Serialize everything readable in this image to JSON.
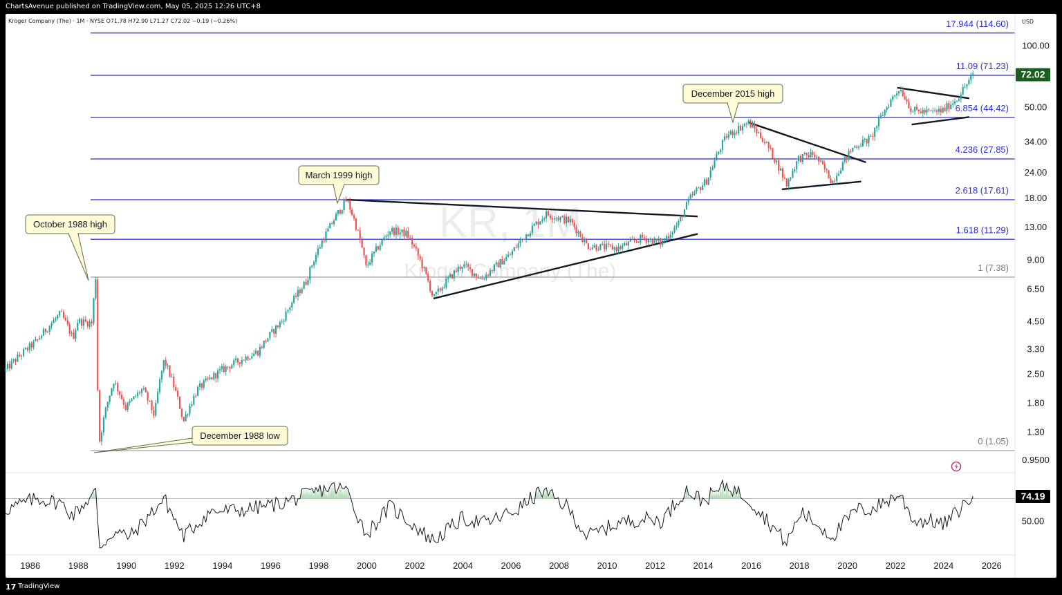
{
  "publisher": "ChartsAvenue published on TradingView.com, May 05, 2025 12:26 UTC+8",
  "header": {
    "symbol_line": "Kroger Company (The) · 1M · NYSE O71.78 H72.90 L71.27 C72.02 −0.19 (−0.26%)"
  },
  "currency": "USD",
  "watermark": {
    "ticker": "KR, 1M",
    "name": "Kroger Company (The)"
  },
  "footer": {
    "logo": "17",
    "brand": "TradingView"
  },
  "colors": {
    "up": "#26a69a",
    "down": "#ef5350",
    "fib_line": "#2a2ed8",
    "fib_base": "#9e9e9e",
    "price_badge": "#1b5e20",
    "rsi_fill": "#a5d6a7"
  },
  "chart_data": [
    {
      "type": "candlestick",
      "title": "Kroger Company (The) · 1M · NYSE",
      "interval": "1M",
      "scale": "log",
      "ohlc_last": {
        "open": 71.78,
        "high": 72.9,
        "low": 71.27,
        "close": 72.02,
        "change": -0.19,
        "change_pct": -0.26
      },
      "last_price_label": "72.02",
      "ylim": [
        0.82,
        140
      ],
      "xlim": [
        1985.0,
        2027.0
      ],
      "x_ticks": [
        "1986",
        "1988",
        "1990",
        "1992",
        "1994",
        "1996",
        "1998",
        "2000",
        "2002",
        "2004",
        "2006",
        "2008",
        "2010",
        "2012",
        "2014",
        "2016",
        "2018",
        "2020",
        "2022",
        "2024",
        "2026"
      ],
      "y_ticks": [
        "100.00",
        "50.00",
        "34.00",
        "24.00",
        "18.00",
        "13.00",
        "9.00",
        "6.50",
        "4.50",
        "3.30",
        "2.50",
        "1.80",
        "1.30",
        "0.9500"
      ],
      "key_points": [
        [
          1985.0,
          2.6
        ],
        [
          1986.3,
          3.6
        ],
        [
          1987.3,
          4.9
        ],
        [
          1987.8,
          3.7
        ],
        [
          1988.0,
          4.5
        ],
        [
          1988.6,
          4.4
        ],
        [
          1988.75,
          7.38
        ],
        [
          1988.85,
          1.05
        ],
        [
          1989.5,
          2.3
        ],
        [
          1990.0,
          1.7
        ],
        [
          1990.7,
          2.1
        ],
        [
          1991.2,
          1.55
        ],
        [
          1991.6,
          2.9
        ],
        [
          1992.4,
          1.45
        ],
        [
          1993.0,
          2.1
        ],
        [
          1994.0,
          2.6
        ],
        [
          1995.5,
          3.2
        ],
        [
          1996.5,
          4.5
        ],
        [
          1997.5,
          7.0
        ],
        [
          1998.5,
          13.0
        ],
        [
          1999.2,
          17.61
        ],
        [
          2000.0,
          8.2
        ],
        [
          2001.0,
          12.5
        ],
        [
          2001.7,
          12.0
        ],
        [
          2002.8,
          5.8
        ],
        [
          2004.0,
          8.5
        ],
        [
          2004.8,
          7.2
        ],
        [
          2006.0,
          9.5
        ],
        [
          2007.5,
          15.0
        ],
        [
          2008.5,
          13.8
        ],
        [
          2009.2,
          10.5
        ],
        [
          2010.5,
          10.2
        ],
        [
          2011.5,
          11.5
        ],
        [
          2012.3,
          10.8
        ],
        [
          2013.0,
          13.5
        ],
        [
          2013.5,
          18.0
        ],
        [
          2014.2,
          22.0
        ],
        [
          2015.0,
          36.0
        ],
        [
          2015.9,
          42.0
        ],
        [
          2016.5,
          35.0
        ],
        [
          2017.5,
          20.8
        ],
        [
          2018.0,
          28.0
        ],
        [
          2018.6,
          29.5
        ],
        [
          2019.4,
          21.5
        ],
        [
          2020.3,
          32.0
        ],
        [
          2021.0,
          35.0
        ],
        [
          2022.2,
          62.0
        ],
        [
          2022.7,
          48.0
        ],
        [
          2023.5,
          47.0
        ],
        [
          2024.0,
          48.0
        ],
        [
          2024.6,
          55.0
        ],
        [
          2025.3,
          72.02
        ]
      ],
      "fibonacci": [
        {
          "label": "0 (1.05)",
          "level": 1.05
        },
        {
          "label": "1 (7.38)",
          "level": 7.38
        },
        {
          "label": "1.618 (11.29)",
          "level": 11.29
        },
        {
          "label": "2.618 (17.61)",
          "level": 17.61
        },
        {
          "label": "4.236 (27.85)",
          "level": 27.85
        },
        {
          "label": "6.854 (44.42)",
          "level": 44.42
        },
        {
          "label": "11.09 (71.23)",
          "level": 71.23
        },
        {
          "label": "17.944 (114.60)",
          "level": 114.6
        }
      ],
      "annotations": [
        {
          "text": "October 1988 high",
          "x": 1988.75,
          "y": 7.38
        },
        {
          "text": "December 1988 low",
          "x": 1988.85,
          "y": 1.05
        },
        {
          "text": "March 1999 high",
          "x": 1999.2,
          "y": 17.61
        },
        {
          "text": "December 2015 high",
          "x": 2015.9,
          "y": 42.0
        }
      ],
      "trendlines": [
        {
          "from": [
            1999.2,
            17.61
          ],
          "to": [
            2013.8,
            14.6
          ]
        },
        {
          "from": [
            2002.8,
            5.8
          ],
          "to": [
            2013.8,
            12.0
          ]
        },
        {
          "from": [
            2015.9,
            42.0
          ],
          "to": [
            2020.8,
            26.8
          ]
        },
        {
          "from": [
            2017.3,
            19.8
          ],
          "to": [
            2020.6,
            21.6
          ]
        },
        {
          "from": [
            2022.1,
            62.0
          ],
          "to": [
            2025.1,
            55.0
          ]
        },
        {
          "from": [
            2022.7,
            41.0
          ],
          "to": [
            2025.1,
            44.6
          ]
        }
      ]
    },
    {
      "type": "line",
      "title": "RSI",
      "last_value_label": "74.19",
      "ylim": [
        20,
        92
      ],
      "y_ticks": [
        "50.00"
      ],
      "overbought": 70,
      "key_points": [
        [
          1985.0,
          60
        ],
        [
          1986.3,
          70
        ],
        [
          1987.3,
          66
        ],
        [
          1987.8,
          55
        ],
        [
          1988.75,
          76
        ],
        [
          1988.9,
          26
        ],
        [
          1989.5,
          40
        ],
        [
          1990.2,
          36
        ],
        [
          1991.6,
          70
        ],
        [
          1992.4,
          36
        ],
        [
          1993.5,
          58
        ],
        [
          1995.0,
          60
        ],
        [
          1996.5,
          66
        ],
        [
          1997.5,
          73
        ],
        [
          1998.5,
          80
        ],
        [
          1999.2,
          78
        ],
        [
          2000.0,
          38
        ],
        [
          2001.0,
          63
        ],
        [
          2002.8,
          32
        ],
        [
          2004.0,
          52
        ],
        [
          2005.0,
          48
        ],
        [
          2006.3,
          60
        ],
        [
          2007.3,
          77
        ],
        [
          2008.3,
          64
        ],
        [
          2009.2,
          36
        ],
        [
          2010.5,
          48
        ],
        [
          2011.5,
          52
        ],
        [
          2012.3,
          50
        ],
        [
          2013.3,
          78
        ],
        [
          2014.0,
          68
        ],
        [
          2015.0,
          82
        ],
        [
          2015.9,
          70
        ],
        [
          2016.8,
          48
        ],
        [
          2017.5,
          30
        ],
        [
          2018.1,
          58
        ],
        [
          2019.4,
          36
        ],
        [
          2020.4,
          60
        ],
        [
          2021.0,
          60
        ],
        [
          2022.2,
          74
        ],
        [
          2022.8,
          50
        ],
        [
          2023.6,
          50
        ],
        [
          2024.0,
          46
        ],
        [
          2024.6,
          58
        ],
        [
          2025.3,
          74.19
        ]
      ]
    }
  ]
}
